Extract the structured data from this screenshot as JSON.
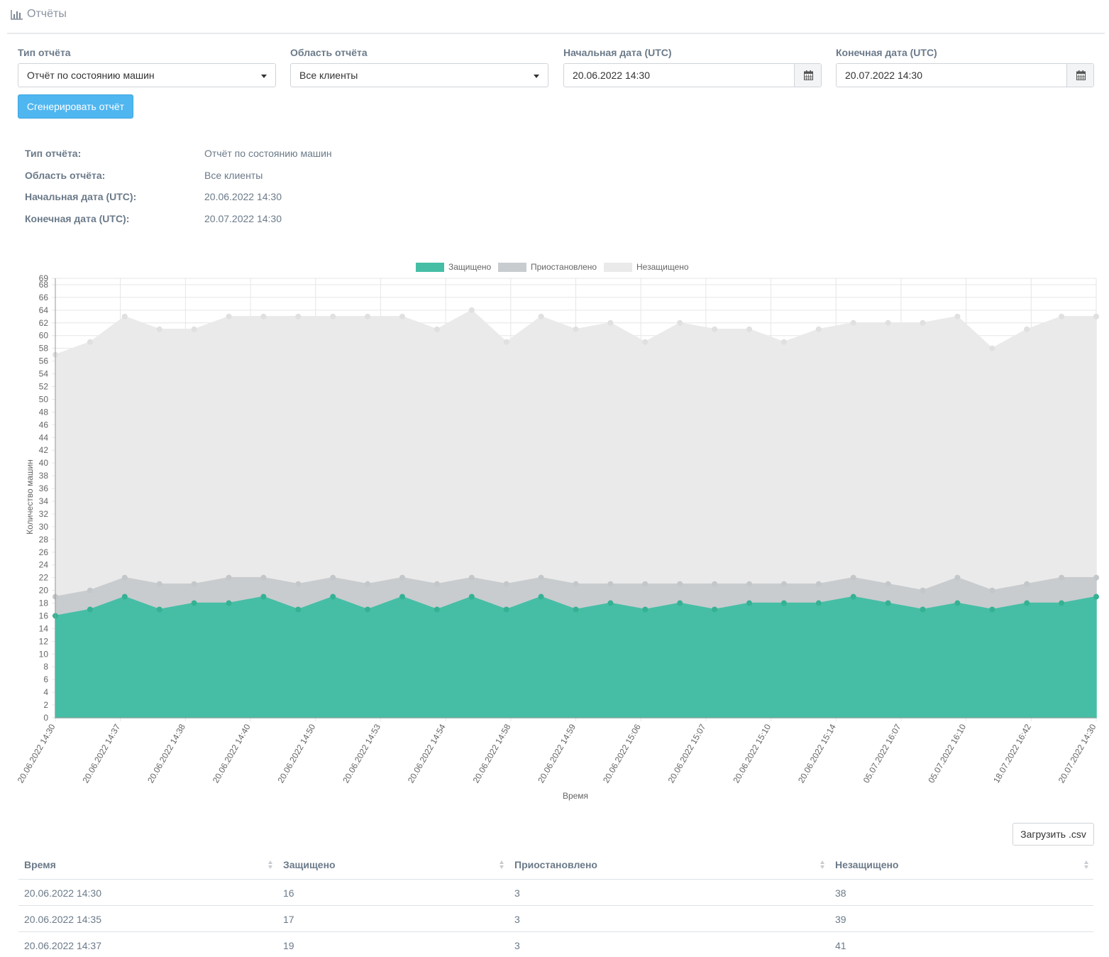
{
  "header": {
    "title": "Отчёты",
    "icon": "bar-chart-icon"
  },
  "form": {
    "report_type": {
      "label": "Тип отчёта",
      "value": "Отчёт по состоянию машин"
    },
    "report_scope": {
      "label": "Область отчёта",
      "value": "Все клиенты"
    },
    "start_date": {
      "label": "Начальная дата (UTC)",
      "value": "20.06.2022 14:30"
    },
    "end_date": {
      "label": "Конечная дата (UTC)",
      "value": "20.07.2022 14:30"
    },
    "generate_label": "Сгенерировать отчёт"
  },
  "summary": [
    {
      "key": "Тип отчёта:",
      "value": "Отчёт по состоянию машин"
    },
    {
      "key": "Область отчёта:",
      "value": "Все клиенты"
    },
    {
      "key": "Начальная дата (UTC):",
      "value": "20.06.2022 14:30"
    },
    {
      "key": "Конечная дата (UTC):",
      "value": "20.07.2022 14:30"
    }
  ],
  "chart_data": {
    "type": "area",
    "stacked": true,
    "xlabel": "Время",
    "ylabel": "Количество машин",
    "ylim": [
      0,
      69
    ],
    "grid": true,
    "legend_position": "top",
    "x_tick_labels": [
      "20.06.2022 14:30",
      "20.06.2022 14:37",
      "20.06.2022 14:38",
      "20.06.2022 14:40",
      "20.06.2022 14:50",
      "20.06.2022 14:53",
      "20.06.2022 14:54",
      "20.06.2022 14:58",
      "20.06.2022 14:59",
      "20.06.2022 15:06",
      "20.06.2022 15:07",
      "20.06.2022 15:10",
      "20.06.2022 15:14",
      "05.07.2022 16:07",
      "05.07.2022 16:10",
      "18.07.2022 16:42",
      "20.07.2022 14:30"
    ],
    "series": [
      {
        "name": "Защищено",
        "color": "#46bea5",
        "values": [
          16,
          17,
          19,
          17,
          18,
          18,
          19,
          17,
          19,
          17,
          19,
          17,
          19,
          17,
          19,
          17,
          18,
          17,
          18,
          17,
          18,
          18,
          18,
          19,
          18,
          17,
          18,
          17,
          18,
          18,
          19
        ]
      },
      {
        "name": "Приостановлено",
        "color": "#c8cccf",
        "values": [
          3,
          3,
          3,
          4,
          3,
          4,
          3,
          4,
          3,
          4,
          3,
          4,
          3,
          4,
          3,
          4,
          3,
          4,
          3,
          4,
          3,
          3,
          3,
          3,
          3,
          3,
          4,
          3,
          3,
          4,
          3
        ]
      },
      {
        "name": "Незащищено",
        "color": "#eaeaea",
        "values": [
          38,
          39,
          41,
          40,
          40,
          41,
          41,
          42,
          41,
          42,
          41,
          40,
          42,
          38,
          41,
          40,
          41,
          38,
          41,
          40,
          40,
          38,
          40,
          40,
          41,
          42,
          41,
          38,
          40,
          41,
          41
        ]
      }
    ]
  },
  "table": {
    "download_label": "Загрузить .csv",
    "columns": [
      "Время",
      "Защищено",
      "Приостановлено",
      "Незащищено"
    ],
    "rows": [
      [
        "20.06.2022 14:30",
        "16",
        "3",
        "38"
      ],
      [
        "20.06.2022 14:35",
        "17",
        "3",
        "39"
      ],
      [
        "20.06.2022 14:37",
        "19",
        "3",
        "41"
      ]
    ]
  }
}
